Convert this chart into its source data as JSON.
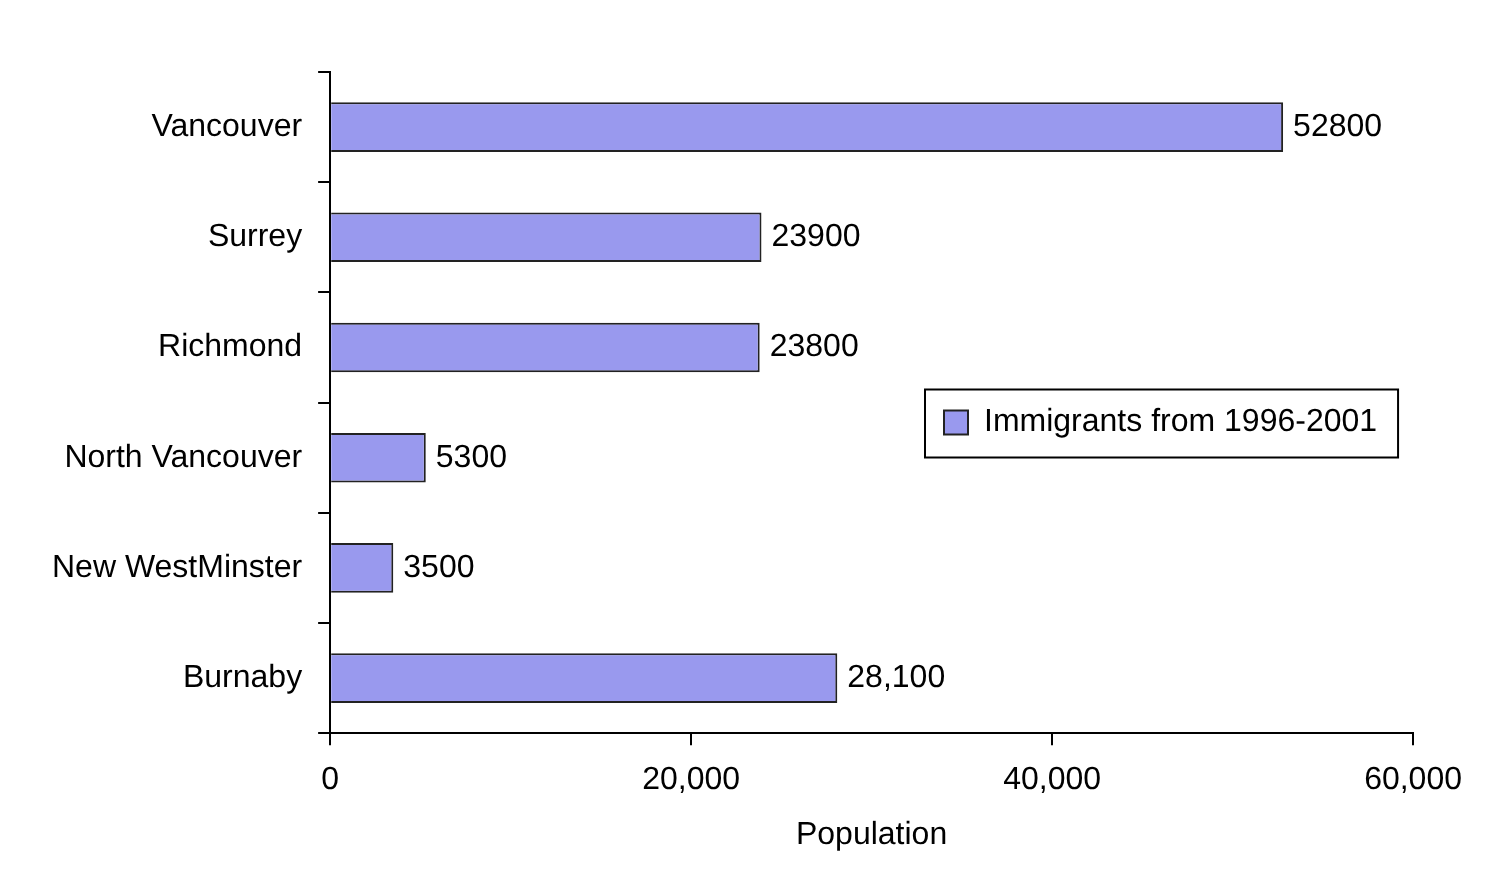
{
  "chart_data": {
    "type": "bar",
    "orientation": "horizontal",
    "xlabel": "Population",
    "categories": [
      "Vancouver",
      "Surrey",
      "Richmond",
      "North Vancouver",
      "New WestMinster",
      "Burnaby"
    ],
    "series": [
      {
        "name": "Immigrants from 1996-2001",
        "color": "#9999ee",
        "values": [
          52800,
          23900,
          23800,
          5300,
          3500,
          28100
        ],
        "value_labels": [
          "52800",
          "23900",
          "23800",
          "5300",
          "3500",
          "28,100"
        ]
      }
    ],
    "xlim": [
      0,
      60000
    ],
    "xticks": [
      0,
      {
        "value": 20000,
        "label": "20,000"
      },
      {
        "value": 40000,
        "label": "40,000"
      },
      {
        "value": 60000,
        "label": "60,000"
      }
    ],
    "grid": false,
    "legend": "right"
  }
}
